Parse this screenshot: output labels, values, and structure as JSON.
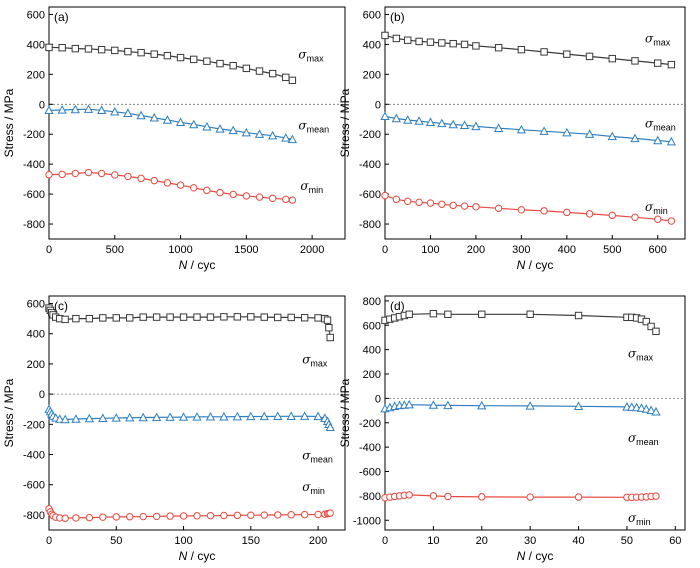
{
  "chart_data": [
    {
      "type": "line",
      "panel_label": "(a)",
      "xlabel": "N / cyc",
      "ylabel": "Stress / MPa",
      "xlim": [
        0,
        2250
      ],
      "ylim": [
        -900,
        650
      ],
      "xticks": [
        0,
        500,
        1000,
        1500,
        2000
      ],
      "yticks": [
        -800,
        -600,
        -400,
        -200,
        0,
        200,
        400,
        600
      ],
      "zero_line": true,
      "series": [
        {
          "name": "σmax",
          "label_main": "σ",
          "label_sub": "max",
          "marker": "square",
          "color": "#3a3a3a",
          "x": [
            0,
            100,
            200,
            300,
            400,
            500,
            600,
            700,
            800,
            900,
            1000,
            1100,
            1200,
            1300,
            1400,
            1500,
            1600,
            1700,
            1800,
            1850
          ],
          "y": [
            380,
            378,
            372,
            370,
            365,
            360,
            352,
            345,
            335,
            325,
            312,
            300,
            288,
            272,
            258,
            240,
            222,
            205,
            180,
            160
          ]
        },
        {
          "name": "σmean",
          "label_main": "σ",
          "label_sub": "mean",
          "marker": "triangle",
          "color": "#2f7fc1",
          "x": [
            0,
            100,
            200,
            300,
            400,
            500,
            600,
            700,
            800,
            900,
            1000,
            1100,
            1200,
            1300,
            1400,
            1500,
            1600,
            1700,
            1800,
            1850
          ],
          "y": [
            -40,
            -38,
            -35,
            -33,
            -40,
            -50,
            -60,
            -75,
            -90,
            -105,
            -120,
            -135,
            -150,
            -165,
            -175,
            -190,
            -200,
            -210,
            -225,
            -235
          ]
        },
        {
          "name": "σmin",
          "label_main": "σ",
          "label_sub": "min",
          "marker": "circle",
          "color": "#e8483f",
          "x": [
            0,
            100,
            200,
            300,
            400,
            500,
            600,
            700,
            800,
            900,
            1000,
            1100,
            1200,
            1300,
            1400,
            1500,
            1600,
            1700,
            1800,
            1850
          ],
          "y": [
            -470,
            -468,
            -462,
            -456,
            -462,
            -472,
            -482,
            -495,
            -510,
            -525,
            -540,
            -558,
            -575,
            -590,
            -602,
            -612,
            -620,
            -628,
            -635,
            -640
          ]
        }
      ]
    },
    {
      "type": "line",
      "panel_label": "(b)",
      "xlabel": "N / cyc",
      "ylabel": "Stress / MPa",
      "xlim": [
        0,
        660
      ],
      "ylim": [
        -900,
        650
      ],
      "xticks": [
        0,
        100,
        200,
        300,
        400,
        500,
        600
      ],
      "yticks": [
        -800,
        -600,
        -400,
        -200,
        0,
        200,
        400,
        600
      ],
      "zero_line": true,
      "series": [
        {
          "name": "σmax",
          "label_main": "σ",
          "label_sub": "max",
          "marker": "square",
          "color": "#3a3a3a",
          "x": [
            0,
            25,
            50,
            75,
            100,
            125,
            150,
            175,
            200,
            250,
            300,
            350,
            400,
            450,
            500,
            550,
            600,
            630
          ],
          "y": [
            460,
            440,
            428,
            420,
            415,
            410,
            405,
            400,
            390,
            378,
            365,
            350,
            335,
            320,
            305,
            290,
            275,
            265
          ]
        },
        {
          "name": "σmean",
          "label_main": "σ",
          "label_sub": "mean",
          "marker": "triangle",
          "color": "#2f7fc1",
          "x": [
            0,
            25,
            50,
            75,
            100,
            125,
            150,
            175,
            200,
            250,
            300,
            350,
            400,
            450,
            500,
            550,
            600,
            630
          ],
          "y": [
            -80,
            -95,
            -105,
            -112,
            -120,
            -128,
            -135,
            -140,
            -148,
            -160,
            -170,
            -180,
            -190,
            -200,
            -215,
            -228,
            -242,
            -250
          ]
        },
        {
          "name": "σmin",
          "label_main": "σ",
          "label_sub": "min",
          "marker": "circle",
          "color": "#e8483f",
          "x": [
            0,
            25,
            50,
            75,
            100,
            125,
            150,
            175,
            200,
            250,
            300,
            350,
            400,
            450,
            500,
            550,
            600,
            630
          ],
          "y": [
            -610,
            -635,
            -648,
            -655,
            -660,
            -668,
            -675,
            -680,
            -685,
            -695,
            -705,
            -712,
            -722,
            -732,
            -742,
            -755,
            -768,
            -780
          ]
        }
      ]
    },
    {
      "type": "line",
      "panel_label": "(c)",
      "xlabel": "N / cyc",
      "ylabel": "Stress / MPa",
      "xlim": [
        0,
        220
      ],
      "ylim": [
        -900,
        650
      ],
      "xticks": [
        0,
        50,
        100,
        150,
        200
      ],
      "yticks": [
        -800,
        -600,
        -400,
        -200,
        0,
        200,
        400,
        600
      ],
      "zero_line": true,
      "series": [
        {
          "name": "σmax",
          "label_main": "σ",
          "label_sub": "max",
          "marker": "square",
          "color": "#3a3a3a",
          "x": [
            0,
            1,
            2,
            3,
            5,
            8,
            12,
            20,
            30,
            40,
            50,
            60,
            70,
            80,
            90,
            100,
            110,
            120,
            130,
            140,
            150,
            160,
            170,
            180,
            190,
            200,
            205,
            207,
            208,
            209
          ],
          "y": [
            570,
            555,
            540,
            525,
            510,
            500,
            495,
            500,
            500,
            505,
            505,
            505,
            510,
            510,
            510,
            510,
            510,
            510,
            512,
            512,
            512,
            510,
            508,
            508,
            506,
            505,
            500,
            490,
            440,
            375
          ]
        },
        {
          "name": "σmean",
          "label_main": "σ",
          "label_sub": "mean",
          "marker": "triangle",
          "color": "#2f7fc1",
          "x": [
            0,
            1,
            2,
            3,
            5,
            8,
            12,
            20,
            30,
            40,
            50,
            60,
            70,
            80,
            90,
            100,
            110,
            120,
            130,
            140,
            150,
            160,
            170,
            180,
            190,
            200,
            205,
            207,
            208,
            209
          ],
          "y": [
            -100,
            -115,
            -130,
            -145,
            -158,
            -165,
            -168,
            -165,
            -162,
            -160,
            -158,
            -156,
            -155,
            -154,
            -153,
            -152,
            -151,
            -150,
            -150,
            -149,
            -148,
            -148,
            -147,
            -147,
            -146,
            -148,
            -160,
            -180,
            -200,
            -220
          ]
        },
        {
          "name": "σmin",
          "label_main": "σ",
          "label_sub": "min",
          "marker": "circle",
          "color": "#e8483f",
          "x": [
            0,
            1,
            2,
            3,
            5,
            8,
            12,
            20,
            30,
            40,
            50,
            60,
            70,
            80,
            90,
            100,
            110,
            120,
            130,
            140,
            150,
            160,
            170,
            180,
            190,
            200,
            205,
            207,
            208,
            209
          ],
          "y": [
            -760,
            -780,
            -795,
            -805,
            -815,
            -820,
            -822,
            -820,
            -818,
            -815,
            -813,
            -812,
            -811,
            -810,
            -808,
            -807,
            -806,
            -805,
            -804,
            -803,
            -802,
            -801,
            -800,
            -799,
            -798,
            -797,
            -795,
            -792,
            -790,
            -788
          ]
        }
      ]
    },
    {
      "type": "line",
      "panel_label": "(d)",
      "xlabel": "N / cyc",
      "ylabel": "Stress / MPa",
      "xlim": [
        0,
        62
      ],
      "ylim": [
        -1080,
        840
      ],
      "xticks": [
        0,
        10,
        20,
        30,
        40,
        50,
        60
      ],
      "yticks": [
        -1000,
        -800,
        -600,
        -400,
        -200,
        0,
        200,
        400,
        600,
        800
      ],
      "zero_line": true,
      "series": [
        {
          "name": "σmax",
          "label_main": "σ",
          "label_sub": "max",
          "marker": "square",
          "color": "#3a3a3a",
          "x": [
            0,
            1,
            2,
            3,
            4,
            5,
            10,
            13,
            20,
            30,
            40,
            50,
            51,
            52,
            53,
            54,
            55,
            56
          ],
          "y": [
            640,
            650,
            660,
            670,
            680,
            690,
            695,
            690,
            690,
            690,
            680,
            665,
            665,
            660,
            650,
            630,
            590,
            550
          ]
        },
        {
          "name": "σmean",
          "label_main": "σ",
          "label_sub": "mean",
          "marker": "triangle",
          "color": "#2f7fc1",
          "x": [
            0,
            1,
            2,
            3,
            4,
            5,
            10,
            13,
            20,
            30,
            40,
            50,
            51,
            52,
            53,
            54,
            55,
            56
          ],
          "y": [
            -85,
            -75,
            -65,
            -58,
            -55,
            -52,
            -55,
            -58,
            -60,
            -62,
            -65,
            -70,
            -72,
            -75,
            -80,
            -88,
            -98,
            -110
          ]
        },
        {
          "name": "σmin",
          "label_main": "σ",
          "label_sub": "min",
          "marker": "circle",
          "color": "#e8483f",
          "x": [
            0,
            1,
            2,
            3,
            4,
            5,
            10,
            13,
            20,
            30,
            40,
            50,
            51,
            52,
            53,
            54,
            55,
            56
          ],
          "y": [
            -815,
            -810,
            -805,
            -800,
            -795,
            -792,
            -800,
            -805,
            -808,
            -810,
            -810,
            -812,
            -812,
            -811,
            -810,
            -808,
            -805,
            -802
          ]
        }
      ]
    }
  ]
}
